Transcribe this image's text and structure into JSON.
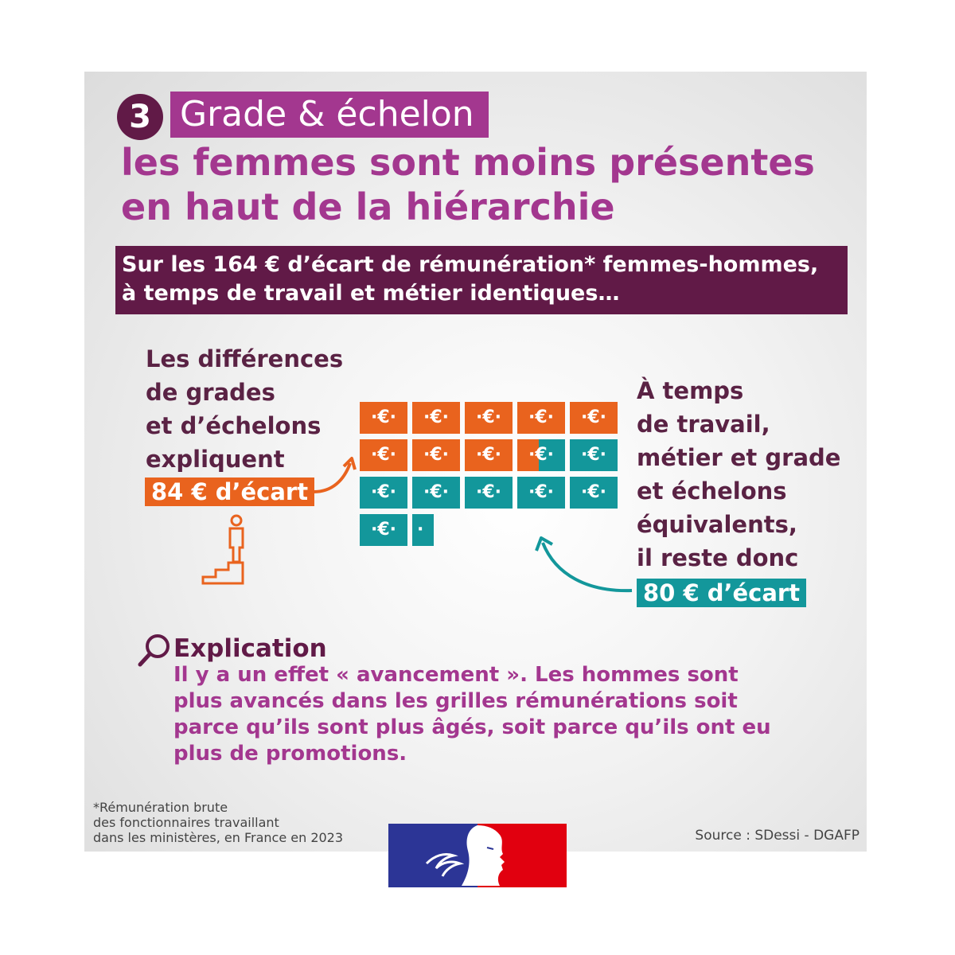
{
  "header": {
    "number": "3",
    "grade_label": "Grade & échelon",
    "headline_lines": [
      "les femmes sont moins présentes",
      "en haut de la hiérarchie"
    ]
  },
  "banner": {
    "lines": [
      "Sur les 164 € d’écart de rémunération* femmes-hommes,",
      "à temps de travail et métier identiques…"
    ]
  },
  "left": {
    "lines": [
      "Les différences",
      "de grades",
      "et d’échelons",
      "expliquent"
    ],
    "badge": "84 € d’écart",
    "icon": "person-on-stairs-icon"
  },
  "right": {
    "lines": [
      "À temps",
      "de travail,",
      "métier et grade",
      "et échelons",
      "équivalents,",
      "il reste donc"
    ],
    "badge": "80 € d’écart"
  },
  "euro_grid": {
    "symbol": "€",
    "total_eur": 164,
    "explained_eur": 84,
    "remaining_eur": 80,
    "orange_color": "#e9631e",
    "teal_color": "#13979b"
  },
  "explanation": {
    "icon": "magnifier-icon",
    "title": "Explication",
    "lines": [
      "Il y a un effet « avancement ». Les hommes sont",
      "plus avancés dans les grilles rémunérations soit",
      "parce qu’ils sont plus âgés, soit parce qu’ils ont eu",
      "plus de promotions."
    ]
  },
  "footer": {
    "footnote_lines": [
      "*Rémunération brute",
      "des fonctionnaires travaillant",
      "dans les ministères, en France en 2023"
    ],
    "source": "Source : SDessi - DGAFP",
    "logo": "marianne-logo"
  },
  "colors": {
    "plum": "#611a47",
    "magenta": "#a3378f",
    "orange": "#e9631e",
    "teal": "#13979b"
  }
}
